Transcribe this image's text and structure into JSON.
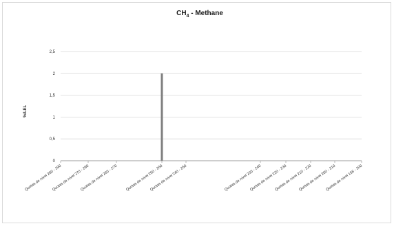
{
  "chart_data": {
    "type": "bar",
    "title": "CH4 - Methane",
    "title_main": "CH",
    "title_sub": "4",
    "title_rest": " - Methane",
    "ylabel": "%/LEL",
    "xlabel": "",
    "ylim": [
      0,
      2.5
    ],
    "yticks": [
      "0",
      "0,5",
      "1",
      "1,5",
      "2",
      "2,5"
    ],
    "grid": true,
    "bar_color": "#7f7f7f",
    "categories": [
      "Quotas de nivel 280 - 290",
      "Quotas de nivel 270 - 280",
      "Quotas de nivel 260 - 270",
      "Quotas de nivel 250 - 260",
      "Quotas de nivel 240 - 250",
      "Quotas de nivel 230 - 240",
      "Quotas de nivel 220 - 230",
      "Quotas de nivel 210 - 220",
      "Quotas de nivel 200 - 210",
      "Quotas de nivel 156 - 200"
    ],
    "values": [
      0,
      0,
      0,
      2,
      0,
      0,
      0,
      0,
      0,
      0
    ]
  }
}
